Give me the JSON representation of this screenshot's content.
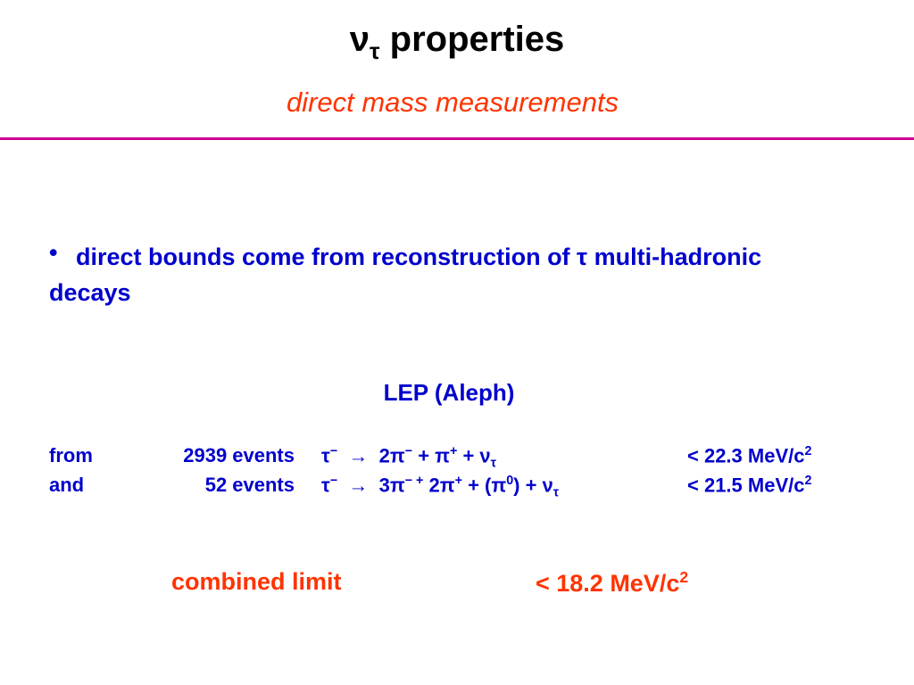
{
  "title": [
    {
      "text": "ν"
    },
    {
      "sub": "τ"
    },
    {
      "text": " properties"
    }
  ],
  "subtitle": "direct mass measurements",
  "bullet": "direct bounds come from reconstruction of τ multi-hadronic decays",
  "section_title": "LEP (Aleph)",
  "rows": [
    {
      "label": "from",
      "events": "2939 events",
      "decay": [
        {
          "text": "τ"
        },
        {
          "sup": "−"
        },
        {
          "text": "  →  2π"
        },
        {
          "sup": "−"
        },
        {
          "text": " + π"
        },
        {
          "sup": "+"
        },
        {
          "text": " + ν"
        },
        {
          "sub": "τ"
        }
      ],
      "limit": [
        {
          "text": "< 22.3 MeV/c"
        },
        {
          "sup": "2"
        }
      ]
    },
    {
      "label": "and",
      "events": "52 events",
      "decay": [
        {
          "text": "τ"
        },
        {
          "sup": "−"
        },
        {
          "text": "  →  3π"
        },
        {
          "sup": "− +"
        },
        {
          "text": " 2π"
        },
        {
          "sup": "+"
        },
        {
          "text": " + (π"
        },
        {
          "sup": "0"
        },
        {
          "text": ") + ν"
        },
        {
          "sub": "τ"
        }
      ],
      "limit": [
        {
          "text": "< 21.5 MeV/c"
        },
        {
          "sup": "2"
        }
      ]
    }
  ],
  "combined": {
    "label": "combined limit",
    "limit": [
      {
        "text": "< 18.2 MeV/c"
      },
      {
        "sup": "2"
      }
    ]
  }
}
